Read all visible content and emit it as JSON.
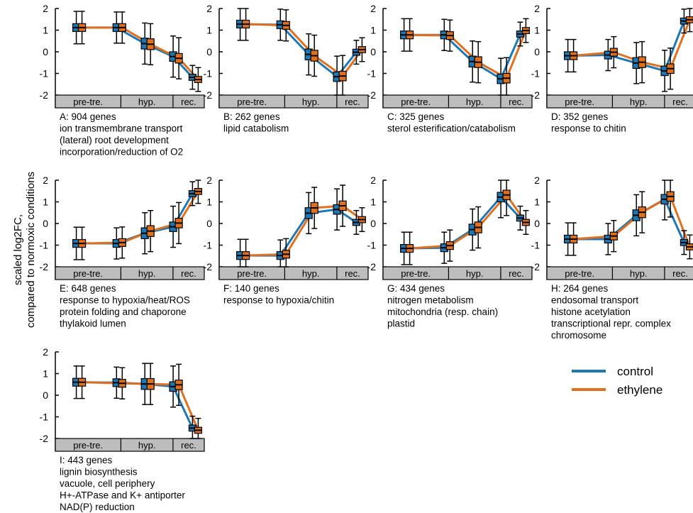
{
  "y_axis_label": [
    "scaled log2FC,",
    "compared to normoxic conditions"
  ],
  "colors": {
    "control": "#1f77b4",
    "ethylene": "#e0701e",
    "phase_bar": "#bdbdbd"
  },
  "phases": [
    "pre-tre.",
    "hyp.",
    "rec."
  ],
  "legend": [
    {
      "label": "control",
      "color": "#1f77b4"
    },
    {
      "label": "ethylene",
      "color": "#e0701e"
    }
  ],
  "chart_data": [
    {
      "type": "box",
      "ylim": [
        -2,
        2
      ],
      "yticks": [
        "2",
        "1",
        "0",
        "-1",
        "-2"
      ],
      "caption": [
        "A: 904 genes",
        "ion transmembrane transport",
        "(lateral) root development",
        "incorporation/reduction of O2"
      ],
      "control": [
        1.12,
        1.12,
        0.38,
        -0.22,
        -1.18
      ],
      "ethylene": [
        1.12,
        1.12,
        0.35,
        -0.3,
        -1.28
      ]
    },
    {
      "type": "box",
      "ylim": [
        -2,
        2
      ],
      "yticks": [
        "2",
        "1",
        "0",
        "-1",
        "-2"
      ],
      "caption": [
        "B: 262 genes",
        "lipid catabolism"
      ],
      "control": [
        1.28,
        1.25,
        -0.12,
        -1.15,
        -0.02
      ],
      "ethylene": [
        1.28,
        1.22,
        -0.18,
        -1.12,
        0.1
      ]
    },
    {
      "type": "box",
      "ylim": [
        -2,
        2
      ],
      "yticks": [
        "2",
        "1",
        "0",
        "-1",
        "-2"
      ],
      "caption": [
        "C: 325 genes",
        "sterol esterification/catabolism"
      ],
      "control": [
        0.78,
        0.78,
        -0.45,
        -1.25,
        0.82
      ],
      "ethylene": [
        0.78,
        0.75,
        -0.48,
        -1.22,
        0.98
      ]
    },
    {
      "type": "box",
      "ylim": [
        -2,
        2
      ],
      "yticks": [
        "2",
        "1",
        "0",
        "-1",
        "-2"
      ],
      "caption": [
        "D: 352 genes",
        "response to chitin"
      ],
      "control": [
        -0.18,
        -0.15,
        -0.52,
        -0.88,
        1.42
      ],
      "ethylene": [
        -0.18,
        -0.02,
        -0.48,
        -0.78,
        1.48
      ]
    },
    {
      "type": "box",
      "ylim": [
        -2,
        2
      ],
      "yticks": [
        "2",
        "1",
        "0",
        "-1",
        "-2"
      ],
      "caption": [
        "E: 648 genes",
        "response to hypoxia/heat/ROS",
        "protein folding and chaporone",
        "thylakoid lumen"
      ],
      "control": [
        -0.92,
        -0.92,
        -0.45,
        -0.15,
        1.38
      ],
      "ethylene": [
        -0.92,
        -0.88,
        -0.35,
        0.02,
        1.48
      ]
    },
    {
      "type": "box",
      "ylim": [
        -2,
        2
      ],
      "yticks": [
        "2",
        "1",
        "0",
        "-1",
        "-2"
      ],
      "caption": [
        "F: 140 genes",
        "response to hypoxia/chitin"
      ],
      "control": [
        -1.48,
        -1.48,
        0.48,
        0.65,
        0.05
      ],
      "ethylene": [
        -1.48,
        -1.42,
        0.72,
        0.82,
        0.18
      ]
    },
    {
      "type": "box",
      "ylim": [
        -2,
        2
      ],
      "yticks": [
        "2",
        "1",
        "0",
        "-1",
        "-2"
      ],
      "caption": [
        "G: 434 genes",
        "nitrogen metabolism",
        "mitochondria (resp. chain)",
        "plastid"
      ],
      "control": [
        -1.15,
        -1.12,
        -0.28,
        1.22,
        0.25
      ],
      "ethylene": [
        -1.15,
        -1.02,
        -0.18,
        1.32,
        0.05
      ]
    },
    {
      "type": "box",
      "ylim": [
        -2,
        2
      ],
      "yticks": [
        "2",
        "1",
        "0",
        "-1",
        "-2"
      ],
      "caption": [
        "H: 264 genes",
        "endosomal transport",
        "histone acetylation",
        "transcriptional repr. complex",
        "chromosome"
      ],
      "control": [
        -0.72,
        -0.72,
        0.38,
        1.12,
        -0.88
      ],
      "ethylene": [
        -0.72,
        -0.58,
        0.52,
        1.25,
        -1.08
      ]
    },
    {
      "type": "box",
      "ylim": [
        -2,
        2
      ],
      "yticks": [
        "2",
        "1",
        "0",
        "-1",
        "-2"
      ],
      "caption": [
        "I: 443 genes",
        "lignin biosynthesis",
        "vacuole, cell periphery",
        "H+-ATPase and K+ antiporter",
        "NAD(P) reduction"
      ],
      "control": [
        0.6,
        0.58,
        0.52,
        0.4,
        -1.52
      ],
      "ethylene": [
        0.6,
        0.55,
        0.52,
        0.48,
        -1.62
      ]
    }
  ]
}
